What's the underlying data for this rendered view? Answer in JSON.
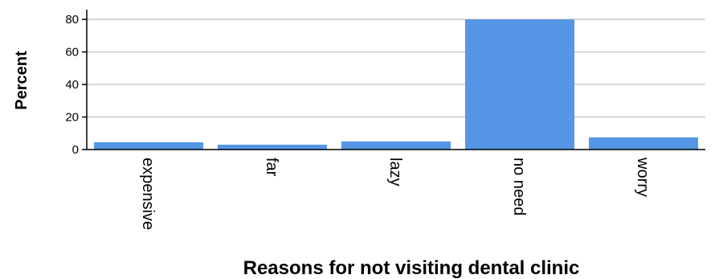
{
  "chart_data": {
    "type": "bar",
    "categories": [
      "expensive",
      "far",
      "lazy",
      "no need",
      "worry"
    ],
    "values": [
      4.5,
      3,
      5,
      80,
      7.5
    ],
    "xlabel": "Reasons for not visiting dental clinic",
    "ylabel": "Percent",
    "ylim": [
      0,
      85
    ],
    "yticks": [
      0,
      20,
      40,
      60,
      80
    ],
    "grid": true,
    "bar_color": "#5596e6",
    "grid_color": "#c8c8c8"
  }
}
